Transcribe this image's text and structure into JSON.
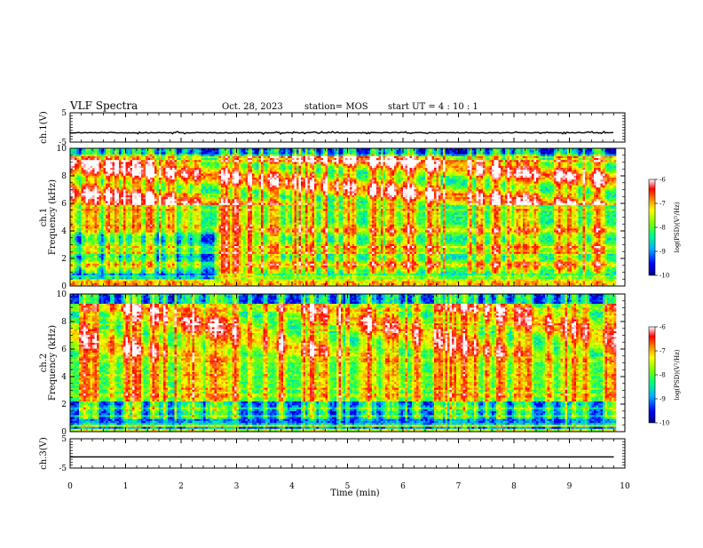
{
  "header": {
    "title": "VLF Spectra",
    "date": "Oct. 28, 2023",
    "station": "station= MOS",
    "start": "start  UT =   4 : 10 : 1"
  },
  "chart_data": [
    {
      "type": "line",
      "panel": "ch1-waveform",
      "ylabel": "ch.1(V)",
      "ylim": [
        -5,
        5
      ],
      "yticks": [
        5,
        -5
      ],
      "xlim": [
        0,
        10
      ],
      "series": [
        {
          "x_range": [
            0,
            9.8
          ],
          "level": -1.8,
          "noise": "small-spikes"
        }
      ]
    },
    {
      "type": "heatmap",
      "panel": "ch1-spectrogram",
      "ylabel": "ch.1\nFrequency (kHz)",
      "ylim": [
        0,
        10
      ],
      "yticks": [
        0,
        2,
        4,
        6,
        8,
        10
      ],
      "xlim": [
        0,
        10
      ],
      "data_x_range": [
        0,
        9.8
      ],
      "colorbar": {
        "label": "log(PSD)(V²/Hz)",
        "range": [
          -10,
          -6
        ],
        "ticks": [
          -6,
          -7,
          -8,
          -9,
          -10
        ],
        "colormap": [
          "#000080",
          "#0000ff",
          "#00b0ff",
          "#00ff80",
          "#80ff00",
          "#ffff00",
          "#ff8000",
          "#ff0000",
          "#ffffff"
        ]
      }
    },
    {
      "type": "heatmap",
      "panel": "ch2-spectrogram",
      "ylabel": "ch.2\nFrequency (kHz)",
      "ylim": [
        0,
        10
      ],
      "yticks": [
        0,
        2,
        4,
        6,
        8,
        10
      ],
      "xlim": [
        0,
        10
      ],
      "data_x_range": [
        0,
        9.8
      ],
      "colorbar": {
        "label": "log(PSD)(V²/Hz)",
        "range": [
          -10,
          -6
        ],
        "ticks": [
          -6,
          -7,
          -8,
          -9,
          -10
        ],
        "colormap": [
          "#000080",
          "#0000ff",
          "#00b0ff",
          "#00ff80",
          "#80ff00",
          "#ffff00",
          "#ff8000",
          "#ff0000",
          "#ffffff"
        ]
      }
    },
    {
      "type": "line",
      "panel": "ch3-waveform",
      "ylabel": "ch.3(V)",
      "ylim": [
        -5,
        5
      ],
      "yticks": [
        5,
        -5
      ],
      "xlim": [
        0,
        10
      ],
      "series": [
        {
          "x_range": [
            0,
            9.8
          ],
          "level": -1.2,
          "noise": "none"
        }
      ]
    }
  ],
  "xaxis": {
    "label": "Time (min)",
    "ticks": [
      0,
      1,
      2,
      3,
      4,
      5,
      6,
      7,
      8,
      9,
      10
    ],
    "minor_per_major": 5
  }
}
